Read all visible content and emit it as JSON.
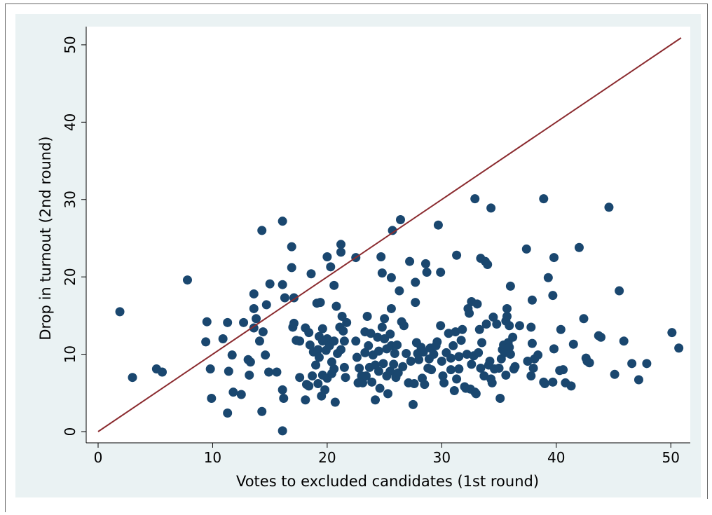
{
  "chart_data": {
    "type": "scatter",
    "x_label": "Votes to excluded candidates (1st round)",
    "y_label": "Drop in turnout (2nd round)",
    "xlim": [
      -1.04,
      51.7
    ],
    "ylim": [
      -1.45,
      52.35
    ],
    "xticks": [
      0,
      10,
      20,
      30,
      40,
      50
    ],
    "yticks": [
      0,
      10,
      20,
      30,
      40,
      50
    ],
    "grid": false,
    "series": [
      {
        "type": "scatter",
        "color": "#1a476f",
        "x": [
          1.9,
          3.0,
          5.1,
          5.6,
          7.8,
          9.4,
          9.5,
          9.8,
          9.9,
          10.9,
          11.3,
          11.3,
          11.4,
          11.7,
          11.8,
          12.5,
          12.7,
          13.1,
          13.2,
          13.3,
          13.6,
          13.6,
          13.6,
          13.8,
          14.1,
          14.3,
          14.3,
          14.4,
          14.6,
          14.7,
          14.9,
          15.0,
          15.6,
          16.1,
          16.1,
          16.1,
          16.1,
          16.2,
          16.3,
          16.9,
          16.9,
          17.0,
          17.1,
          17.1,
          17.3,
          17.6,
          17.6,
          18.1,
          18.1,
          18.2,
          18.4,
          18.4,
          18.5,
          18.6,
          18.7,
          18.8,
          19.0,
          19.1,
          19.2,
          19.2,
          19.3,
          19.3,
          19.4,
          19.5,
          19.6,
          19.6,
          19.6,
          19.8,
          19.9,
          20.0,
          20.0,
          20.0,
          20.2,
          20.3,
          20.4,
          20.4,
          20.6,
          20.6,
          20.6,
          20.7,
          20.8,
          20.9,
          21.1,
          21.2,
          21.2,
          21.2,
          21.3,
          21.4,
          21.5,
          21.6,
          21.5,
          21.7,
          22.5,
          22.6,
          22.5,
          22.7,
          22.8,
          23.0,
          23.1,
          23.3,
          23.3,
          23.4,
          23.5,
          23.6,
          23.7,
          23.8,
          23.9,
          24.0,
          24.2,
          24.2,
          24.4,
          24.5,
          24.5,
          24.6,
          24.7,
          24.8,
          24.8,
          24.9,
          25.0,
          25.0,
          25.2,
          25.2,
          25.3,
          25.5,
          25.5,
          25.6,
          25.6,
          25.6,
          25.7,
          25.8,
          25.9,
          26.0,
          26.1,
          26.2,
          26.3,
          26.4,
          26.5,
          26.6,
          26.7,
          26.9,
          27.1,
          27.2,
          27.3,
          27.5,
          27.6,
          27.7,
          27.7,
          27.8,
          27.9,
          28.0,
          28.2,
          28.3,
          28.4,
          28.5,
          28.6,
          28.7,
          28.8,
          28.9,
          29.0,
          29.1,
          29.3,
          29.5,
          29.6,
          29.7,
          29.9,
          29.9,
          30.0,
          30.1,
          30.2,
          30.4,
          30.6,
          30.8,
          30.8,
          31.0,
          31.1,
          31.2,
          31.3,
          31.3,
          31.5,
          31.5,
          31.7,
          31.8,
          32.0,
          32.1,
          32.2,
          32.3,
          32.4,
          32.5,
          32.6,
          32.6,
          32.8,
          32.9,
          32.9,
          33.0,
          33.1,
          33.2,
          33.3,
          33.4,
          33.4,
          33.5,
          33.7,
          33.8,
          33.9,
          34.0,
          34.1,
          34.2,
          34.3,
          34.3,
          34.4,
          34.5,
          34.6,
          34.8,
          35.0,
          35.1,
          35.2,
          35.3,
          35.4,
          35.5,
          35.6,
          35.6,
          35.7,
          35.7,
          35.8,
          35.9,
          35.9,
          36.0,
          36.0,
          36.2,
          36.3,
          36.4,
          36.8,
          37.4,
          37.5,
          37.8,
          37.8,
          37.9,
          37.9,
          38.0,
          38.1,
          38.4,
          38.9,
          39.0,
          38.9,
          39.3,
          39.7,
          39.7,
          39.8,
          39.8,
          40.4,
          40.3,
          40.6,
          40.8,
          41.3,
          41.5,
          42.0,
          42.4,
          42.6,
          42.7,
          42.9,
          43.7,
          43.9,
          44.6,
          45.1,
          45.5,
          45.9,
          46.6,
          47.2,
          47.9,
          50.1,
          50.7
        ],
        "values": [
          15.5,
          7.0,
          8.1,
          7.7,
          19.6,
          11.6,
          14.2,
          8.1,
          4.3,
          12.0,
          14.1,
          2.4,
          7.8,
          9.9,
          5.1,
          4.8,
          14.1,
          9.3,
          7.3,
          9.0,
          15.9,
          17.8,
          13.4,
          14.6,
          11.7,
          26.0,
          2.6,
          12.9,
          9.9,
          16.4,
          7.7,
          19.1,
          7.7,
          27.2,
          19.0,
          5.4,
          0.1,
          4.3,
          17.3,
          23.9,
          21.2,
          13.5,
          17.3,
          14.0,
          11.8,
          7.0,
          11.7,
          13.4,
          4.1,
          6.1,
          5.9,
          12.8,
          11.2,
          20.4,
          7.2,
          10.3,
          8.6,
          16.6,
          6.2,
          10.6,
          12.3,
          9.6,
          16.7,
          4.6,
          13.3,
          7.3,
          11.7,
          5.4,
          10.5,
          22.6,
          12.0,
          6.9,
          11.1,
          21.3,
          9.0,
          7.5,
          11.7,
          18.9,
          8.1,
          3.8,
          16.2,
          10.1,
          13.5,
          10.6,
          23.2,
          24.2,
          14.9,
          13.0,
          8.3,
          7.0,
          11.7,
          14.1,
          22.5,
          9.6,
          11.7,
          6.3,
          8.2,
          7.2,
          6.3,
          12.9,
          10.2,
          7.2,
          14.9,
          11.1,
          8.3,
          12.7,
          6.4,
          9.9,
          8.6,
          4.1,
          12.2,
          7.8,
          10.4,
          5.6,
          22.6,
          20.5,
          13.5,
          8.8,
          12.0,
          14.6,
          7.2,
          10.7,
          4.9,
          7.8,
          12.6,
          15.9,
          19.9,
          11.1,
          26.0,
          8.7,
          10.1,
          7.0,
          11.2,
          7.6,
          18.2,
          27.4,
          14.2,
          8.4,
          13.7,
          10.1,
          6.3,
          22.0,
          9.1,
          3.5,
          6.2,
          19.3,
          16.7,
          11.5,
          10.1,
          9.3,
          10.9,
          6.9,
          10.3,
          6.1,
          21.7,
          20.6,
          8.2,
          9.4,
          10.8,
          8.0,
          10.0,
          11.1,
          11.6,
          26.7,
          20.6,
          13.7,
          9.1,
          7.2,
          6.3,
          10.2,
          12.7,
          9.5,
          8.0,
          11.1,
          5.3,
          12.9,
          6.8,
          22.8,
          8.1,
          9.7,
          11.8,
          13.2,
          5.8,
          5.6,
          10.0,
          15.9,
          15.3,
          5.5,
          8.7,
          16.8,
          9.8,
          30.1,
          5.1,
          4.9,
          16.5,
          10.2,
          13.2,
          8.2,
          22.4,
          11.5,
          7.2,
          22.0,
          13.9,
          21.6,
          8.6,
          9.1,
          28.9,
          6.8,
          6.3,
          14.8,
          8.1,
          13.9,
          8.2,
          4.3,
          9.4,
          10.6,
          11.2,
          10.2,
          7.3,
          14.3,
          15.9,
          14.9,
          11.5,
          10.9,
          13.7,
          18.8,
          10.0,
          12.2,
          8.1,
          8.4,
          13.7,
          23.6,
          9.1,
          7.2,
          13.5,
          17.0,
          11.4,
          8.2,
          9.4,
          9.9,
          6.4,
          6.2,
          30.1,
          19.9,
          6.4,
          17.6,
          22.5,
          10.7,
          13.2,
          7.9,
          8.0,
          6.3,
          5.9,
          11.3,
          23.8,
          14.6,
          9.5,
          9.1,
          8.9,
          12.4,
          12.2,
          29.0,
          7.4,
          18.2,
          11.7,
          8.8,
          6.7,
          8.8,
          12.8,
          10.8
        ]
      },
      {
        "type": "line",
        "color": "#8b2b2f",
        "x": [
          0,
          50.9
        ],
        "values": [
          0,
          50.9
        ]
      }
    ]
  }
}
